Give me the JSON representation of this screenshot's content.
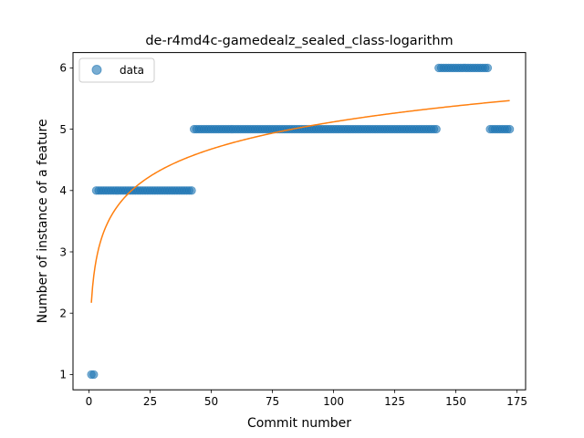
{
  "chart_data": {
    "type": "scatter",
    "title": "de-r4md4c-gamedealz_sealed_class-logarithm",
    "xlabel": "Commit number",
    "ylabel": "Number of instance of a feature",
    "xlim": [
      -6.5,
      178.5
    ],
    "ylim": [
      0.75,
      6.25
    ],
    "xticks": [
      0,
      25,
      50,
      75,
      100,
      125,
      150,
      175
    ],
    "yticks": [
      1,
      2,
      3,
      4,
      5,
      6
    ],
    "grid": false,
    "legend_position": "upper left",
    "series": [
      {
        "name": "data",
        "kind": "scatter",
        "color": "#1f77b4",
        "segments": [
          {
            "x_start": 1,
            "x_end": 2,
            "y": 1
          },
          {
            "x_start": 3,
            "x_end": 42,
            "y": 4
          },
          {
            "x_start": 43,
            "x_end": 142,
            "y": 5
          },
          {
            "x_start": 143,
            "x_end": 163,
            "y": 6
          },
          {
            "x_start": 164,
            "x_end": 172,
            "y": 5
          }
        ]
      },
      {
        "name": "",
        "kind": "line",
        "color": "#ff7f0e",
        "model": "logarithmic",
        "a": 2.17,
        "b": 0.6405,
        "x_range": [
          1,
          172
        ]
      }
    ]
  }
}
